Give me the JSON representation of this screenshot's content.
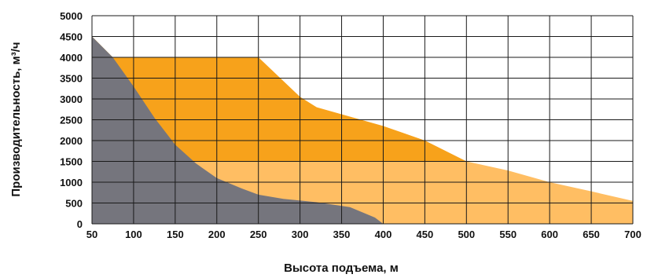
{
  "chart_data": {
    "type": "area",
    "xlabel": "Высота подъема, м",
    "ylabel": "Производительность, м³/ч",
    "xlim": [
      50,
      700
    ],
    "ylim": [
      0,
      5000
    ],
    "x_ticks": [
      50,
      100,
      150,
      200,
      250,
      300,
      350,
      400,
      450,
      500,
      550,
      600,
      650,
      700
    ],
    "y_ticks": [
      0,
      500,
      1000,
      1500,
      2000,
      2500,
      3000,
      3500,
      4000,
      4500,
      5000
    ],
    "grid": true,
    "legend": "none",
    "series": [
      {
        "color": "#ffbe63",
        "points": [
          [
            50,
            0
          ],
          [
            50,
            4500
          ],
          [
            75,
            4000
          ],
          [
            250,
            4000
          ],
          [
            300,
            3050
          ],
          [
            320,
            2800
          ],
          [
            400,
            2350
          ],
          [
            450,
            2000
          ],
          [
            500,
            1500
          ],
          [
            550,
            1280
          ],
          [
            600,
            1000
          ],
          [
            650,
            780
          ],
          [
            700,
            550
          ],
          [
            700,
            0
          ]
        ]
      },
      {
        "color": "#f7a21b",
        "points": [
          [
            50,
            4500
          ],
          [
            75,
            4000
          ],
          [
            250,
            4000
          ],
          [
            300,
            3050
          ],
          [
            320,
            2800
          ],
          [
            400,
            2350
          ],
          [
            450,
            2000
          ],
          [
            500,
            1500
          ],
          [
            50,
            1500
          ]
        ]
      },
      {
        "color": "#75757d",
        "points": [
          [
            50,
            0
          ],
          [
            50,
            4500
          ],
          [
            75,
            4000
          ],
          [
            100,
            3300
          ],
          [
            125,
            2550
          ],
          [
            150,
            1900
          ],
          [
            175,
            1450
          ],
          [
            200,
            1100
          ],
          [
            230,
            850
          ],
          [
            250,
            700
          ],
          [
            280,
            600
          ],
          [
            320,
            520
          ],
          [
            360,
            400
          ],
          [
            390,
            150
          ],
          [
            400,
            0
          ]
        ]
      }
    ]
  }
}
